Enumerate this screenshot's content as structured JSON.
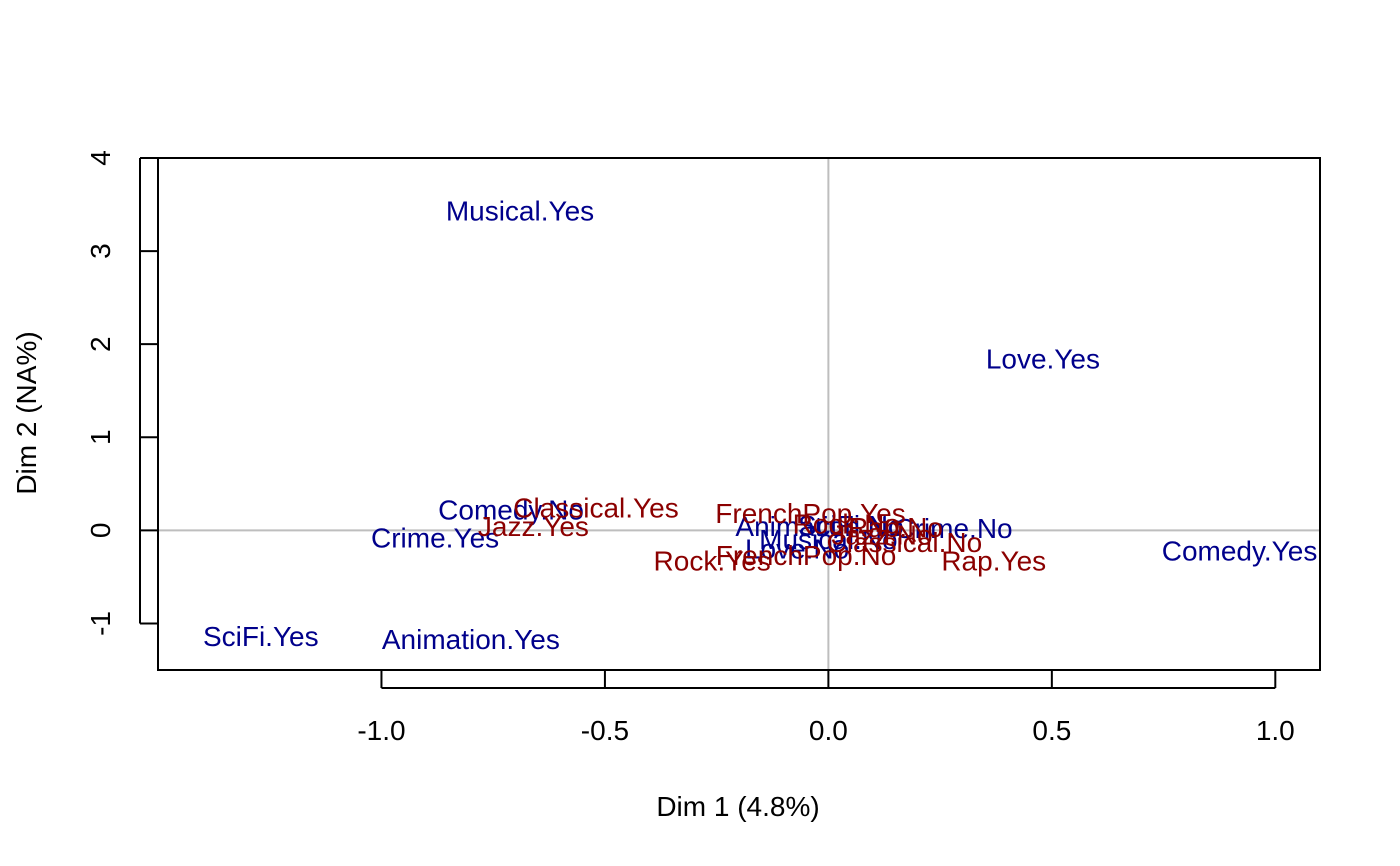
{
  "chart_data": {
    "type": "scatter",
    "title": "",
    "xlabel": "Dim 1 (4.8%)",
    "ylabel": "Dim 2 (NA%)",
    "xlim": [
      -1.5,
      1.1
    ],
    "ylim": [
      -1.5,
      4.0
    ],
    "x_ticks": [
      -1.0,
      -0.5,
      0.0,
      0.5,
      1.0
    ],
    "x_tick_labels": [
      "-1.0",
      "-0.5",
      "0.0",
      "0.5",
      "1.0"
    ],
    "y_ticks": [
      -1,
      0,
      1,
      2,
      3,
      4
    ],
    "y_tick_labels": [
      "-1",
      "0",
      "1",
      "2",
      "3",
      "4"
    ],
    "reference_lines": {
      "x": 0,
      "y": 0,
      "color": "#bebebe"
    },
    "grid": false,
    "legend": "none",
    "colors": {
      "series1": "#00008b",
      "series2": "#8b0000"
    },
    "series": [
      {
        "color": "#00008b",
        "points": [
          {
            "label": "Musical.Yes",
            "x": -0.69,
            "y": 3.43
          },
          {
            "label": "Love.Yes",
            "x": 0.48,
            "y": 1.84
          },
          {
            "label": "Comedy.No",
            "x": -0.71,
            "y": 0.22
          },
          {
            "label": "Crime.Yes",
            "x": -0.88,
            "y": -0.08
          },
          {
            "label": "Crime.No",
            "x": 0.28,
            "y": 0.02
          },
          {
            "label": "Comedy.Yes",
            "x": 0.92,
            "y": -0.22
          },
          {
            "label": "SciFi.Yes",
            "x": -1.27,
            "y": -1.14
          },
          {
            "label": "Animation.Yes",
            "x": -0.8,
            "y": -1.17
          },
          {
            "label": "Animation.No",
            "x": -0.02,
            "y": 0.04
          },
          {
            "label": "SciFi.No",
            "x": 0.05,
            "y": 0.05
          },
          {
            "label": "Musical.No",
            "x": 0.0,
            "y": -0.1
          },
          {
            "label": "Love.No",
            "x": -0.07,
            "y": -0.2
          }
        ]
      },
      {
        "color": "#8b0000",
        "points": [
          {
            "label": "Classical.Yes",
            "x": -0.52,
            "y": 0.24
          },
          {
            "label": "Jazz.Yes",
            "x": -0.66,
            "y": 0.04
          },
          {
            "label": "FrenchPop.Yes",
            "x": -0.04,
            "y": 0.18
          },
          {
            "label": "Rock.Yes",
            "x": -0.26,
            "y": -0.33
          },
          {
            "label": "Rap.Yes",
            "x": 0.37,
            "y": -0.33
          },
          {
            "label": "Classical.No",
            "x": 0.17,
            "y": -0.13
          },
          {
            "label": "FrenchPop.No",
            "x": -0.05,
            "y": -0.27
          },
          {
            "label": "Jazz.No",
            "x": 0.12,
            "y": -0.05
          },
          {
            "label": "Rock.No",
            "x": 0.04,
            "y": 0.07
          },
          {
            "label": "Rap.No",
            "x": 0.15,
            "y": 0.03
          }
        ]
      }
    ]
  }
}
